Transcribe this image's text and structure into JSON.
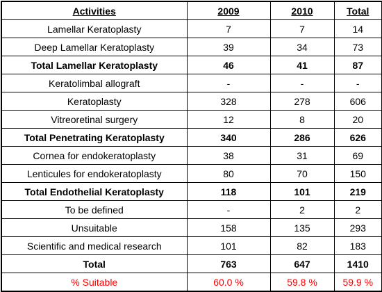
{
  "table": {
    "header": [
      "Activities",
      "2009",
      "2010",
      "Total"
    ],
    "rows": [
      {
        "cells": [
          "Lamellar Keratoplasty",
          7,
          7,
          14
        ]
      },
      {
        "cells": [
          "Deep Lamellar Keratoplasty",
          39,
          34,
          73
        ]
      },
      {
        "cells": [
          "Total Lamellar Keratoplasty",
          46,
          41,
          87
        ],
        "bold": true
      },
      {
        "cells": [
          "Keratolimbal allograft",
          "-",
          "-",
          "-"
        ]
      },
      {
        "cells": [
          "Keratoplasty",
          328,
          278,
          606
        ]
      },
      {
        "cells": [
          "Vitreoretinal surgery",
          12,
          8,
          20
        ]
      },
      {
        "cells": [
          "Total Penetrating  Keratoplasty",
          340,
          286,
          626
        ],
        "bold": true
      },
      {
        "cells": [
          "Cornea for endokeratoplasty",
          38,
          31,
          69
        ]
      },
      {
        "cells": [
          "Lenticules for endokeratoplasty",
          80,
          70,
          150
        ]
      },
      {
        "cells": [
          "Total Endothelial Keratoplasty",
          118,
          101,
          219
        ],
        "bold": true
      },
      {
        "cells": [
          "To be defined",
          "-",
          2,
          2
        ]
      },
      {
        "cells": [
          "Unsuitable",
          158,
          135,
          293
        ]
      },
      {
        "cells": [
          "Scientific and medical research",
          101,
          82,
          183
        ]
      },
      {
        "cells": [
          "Total",
          763,
          647,
          1410
        ],
        "bold": true
      },
      {
        "cells": [
          "% Suitable",
          "60.0 %",
          "59.8 %",
          "59.9 %"
        ],
        "color": "#ff0000"
      }
    ]
  }
}
